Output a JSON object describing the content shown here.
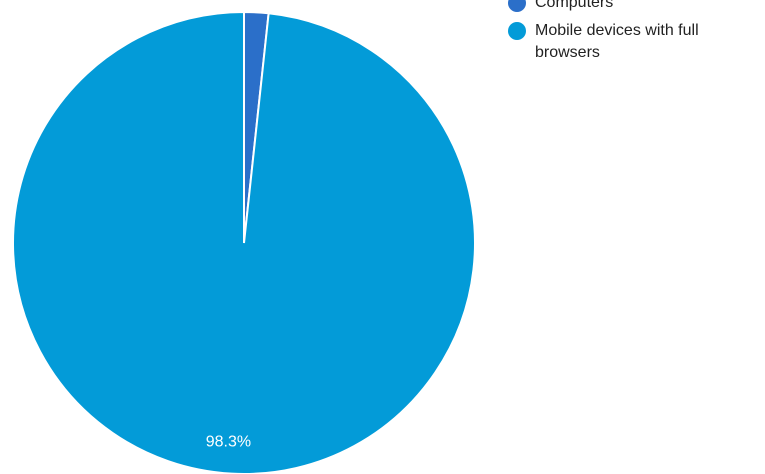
{
  "chart_data": {
    "type": "pie",
    "categories": [
      "Computers",
      "Mobile devices with full browsers"
    ],
    "values": [
      1.7,
      98.3
    ],
    "colors": [
      "#2b6fc9",
      "#039bd8"
    ],
    "data_labels": [
      "",
      "98.3%"
    ],
    "legend_position": "top-right"
  }
}
